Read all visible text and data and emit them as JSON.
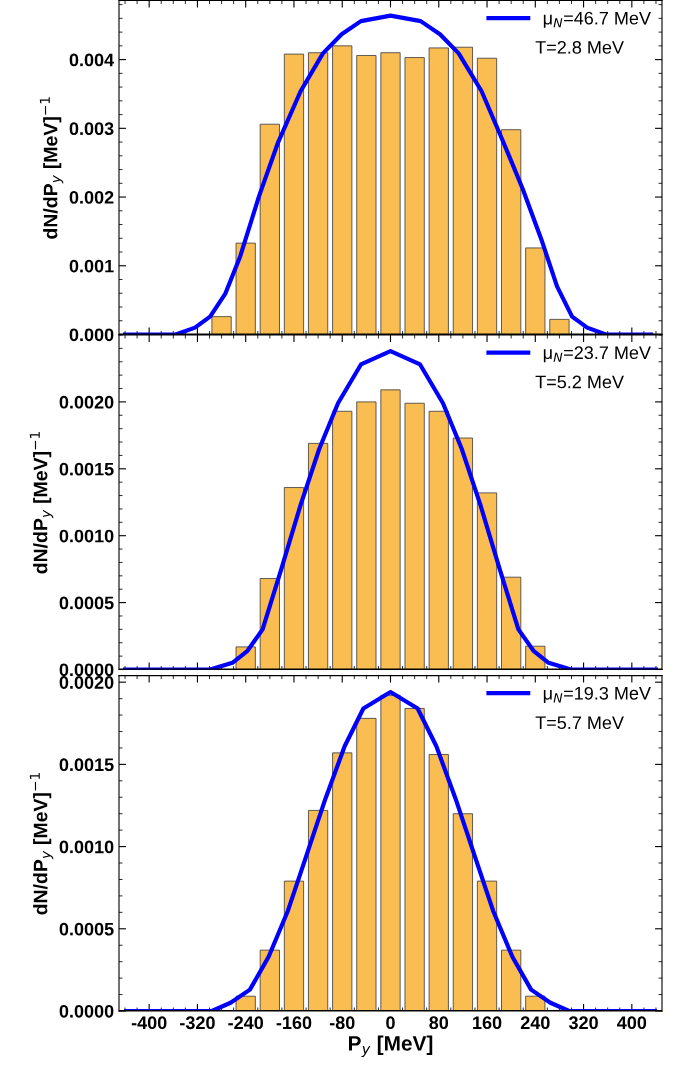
{
  "chart_data": [
    {
      "type": "histogram",
      "ylabel": "dN/dP$_{y}$ [MeV]$^{−1}$",
      "bins": [
        -300,
        -260,
        -220,
        -180,
        -140,
        -100,
        -60,
        -20,
        20,
        60,
        100,
        140,
        180,
        220,
        260,
        300
      ],
      "values": [
        0.00026,
        0.00133,
        0.00306,
        0.00408,
        0.0041,
        0.0042,
        0.00406,
        0.0041,
        0.00403,
        0.00417,
        0.00418,
        0.00402,
        0.00298,
        0.00126,
        0.00022
      ],
      "color": "#f9bd52",
      "series": [
        {
          "type": "line",
          "name": "μ$_{N}$=46.7 MeV",
          "color": "#0000ff",
          "x": [
            -440,
            -356,
            -324,
            -299,
            -274,
            -249,
            -218,
            -187,
            -149,
            -112,
            -81,
            -49,
            0,
            50,
            82,
            113,
            151,
            188,
            219,
            251,
            276,
            301,
            326,
            357,
            432
          ],
          "values": [
            0,
            0,
            0.0001,
            0.00026,
            0.00059,
            0.00114,
            0.00201,
            0.00278,
            0.00354,
            0.00409,
            0.00437,
            0.00456,
            0.00464,
            0.00456,
            0.00437,
            0.00409,
            0.00354,
            0.00278,
            0.00212,
            0.00136,
            0.0007,
            0.00026,
            0.0001,
            0,
            0
          ]
        }
      ],
      "annotations": [
        "T=2.8 MeV"
      ],
      "legend": "top right",
      "tick_labels": "y",
      "xlim": [
        -450,
        450
      ],
      "xticks": [
        -400,
        -320,
        -240,
        -160,
        -80,
        0,
        80,
        160,
        240,
        320,
        400
      ],
      "ylim": [
        0,
        0.00486
      ],
      "yticks": [
        {
          "value": 0,
          "label": "0.000"
        },
        {
          "value": 0.001,
          "label": "0.001"
        },
        {
          "value": 0.002,
          "label": "0.002"
        },
        {
          "value": 0.003,
          "label": "0.003"
        },
        {
          "value": 0.004,
          "label": "0.004"
        }
      ]
    },
    {
      "type": "histogram",
      "ylabel": "dN/dP$_{y}$ [MeV]$^{−1}$",
      "bins": [
        -260,
        -220,
        -180,
        -140,
        -100,
        -60,
        -20,
        20,
        60,
        100,
        140,
        180,
        220,
        260
      ],
      "values": [
        0.000169,
        0.00068,
        0.00136,
        0.00169,
        0.00193,
        0.002,
        0.00209,
        0.00199,
        0.00193,
        0.00173,
        0.00132,
        0.00069,
        0.000174
      ],
      "color": "#f9bd52",
      "series": [
        {
          "type": "line",
          "name": "μ$_{N}$=23.7 MeV",
          "color": "#0000ff",
          "x": [
            -440,
            -299,
            -262,
            -237,
            -212,
            -181,
            -149,
            -118,
            -87,
            -49,
            0,
            49,
            87,
            118,
            149,
            181,
            212,
            237,
            262,
            299,
            440
          ],
          "values": [
            0,
            0,
            5e-05,
            0.00014,
            0.0003,
            0.00075,
            0.00123,
            0.00165,
            0.00199,
            0.00228,
            0.00238,
            0.00228,
            0.00199,
            0.00165,
            0.00123,
            0.00075,
            0.0003,
            0.00014,
            5e-05,
            0,
            0
          ]
        }
      ],
      "annotations": [
        "T=5.2 MeV"
      ],
      "legend": "top right",
      "tick_labels": "y",
      "xlim": [
        -450,
        450
      ],
      "xticks": [
        -400,
        -320,
        -240,
        -160,
        -80,
        0,
        80,
        160,
        240,
        320,
        400
      ],
      "ylim": [
        0,
        0.0025
      ],
      "yticks": [
        {
          "value": 0,
          "label": "0.0000"
        },
        {
          "value": 0.0005,
          "label": "0.0005"
        },
        {
          "value": 0.001,
          "label": "0.0010"
        },
        {
          "value": 0.0015,
          "label": "0.0015"
        },
        {
          "value": 0.002,
          "label": "0.0020"
        }
      ]
    },
    {
      "type": "histogram",
      "xlabel": "P$_{y}$ [MeV]",
      "ylabel": "dN/dP$_{y}$ [MeV]$^{−1}$",
      "bins": [
        -260,
        -220,
        -180,
        -140,
        -100,
        -60,
        -20,
        20,
        60,
        100,
        140,
        180,
        220,
        260
      ],
      "values": [
        9e-05,
        0.00037,
        0.00079,
        0.00122,
        0.00157,
        0.00178,
        0.00192,
        0.00184,
        0.00156,
        0.0012,
        0.00079,
        0.00037,
        9e-05
      ],
      "color": "#f9bd52",
      "series": [
        {
          "type": "line",
          "name": "μ$_{N}$=19.3 MeV",
          "color": "#0000ff",
          "x": [
            -438,
            -296,
            -265,
            -233,
            -202,
            -170,
            -139,
            -108,
            -76,
            -45,
            0,
            45,
            76,
            108,
            139,
            170,
            202,
            233,
            265,
            296,
            438
          ],
          "values": [
            0,
            0,
            5e-05,
            0.00013,
            0.00033,
            0.00061,
            0.00095,
            0.00129,
            0.00161,
            0.00184,
            0.00194,
            0.00184,
            0.00161,
            0.00129,
            0.00095,
            0.00061,
            0.00033,
            0.00013,
            5e-05,
            0,
            0
          ]
        }
      ],
      "annotations": [
        "T=5.7 MeV"
      ],
      "legend": "top right",
      "xlim": [
        -450,
        450
      ],
      "xticks": [
        -400,
        -320,
        -240,
        -160,
        -80,
        0,
        80,
        160,
        240,
        320,
        400
      ],
      "ylim": [
        0,
        0.00204
      ],
      "yticks": [
        {
          "value": 0,
          "label": "0.0000"
        },
        {
          "value": 0.0005,
          "label": "0.0005"
        },
        {
          "value": 0.001,
          "label": "0.0010"
        },
        {
          "value": 0.0015,
          "label": "0.0015"
        },
        {
          "value": 0.002,
          "label": "0.0020"
        }
      ]
    }
  ]
}
